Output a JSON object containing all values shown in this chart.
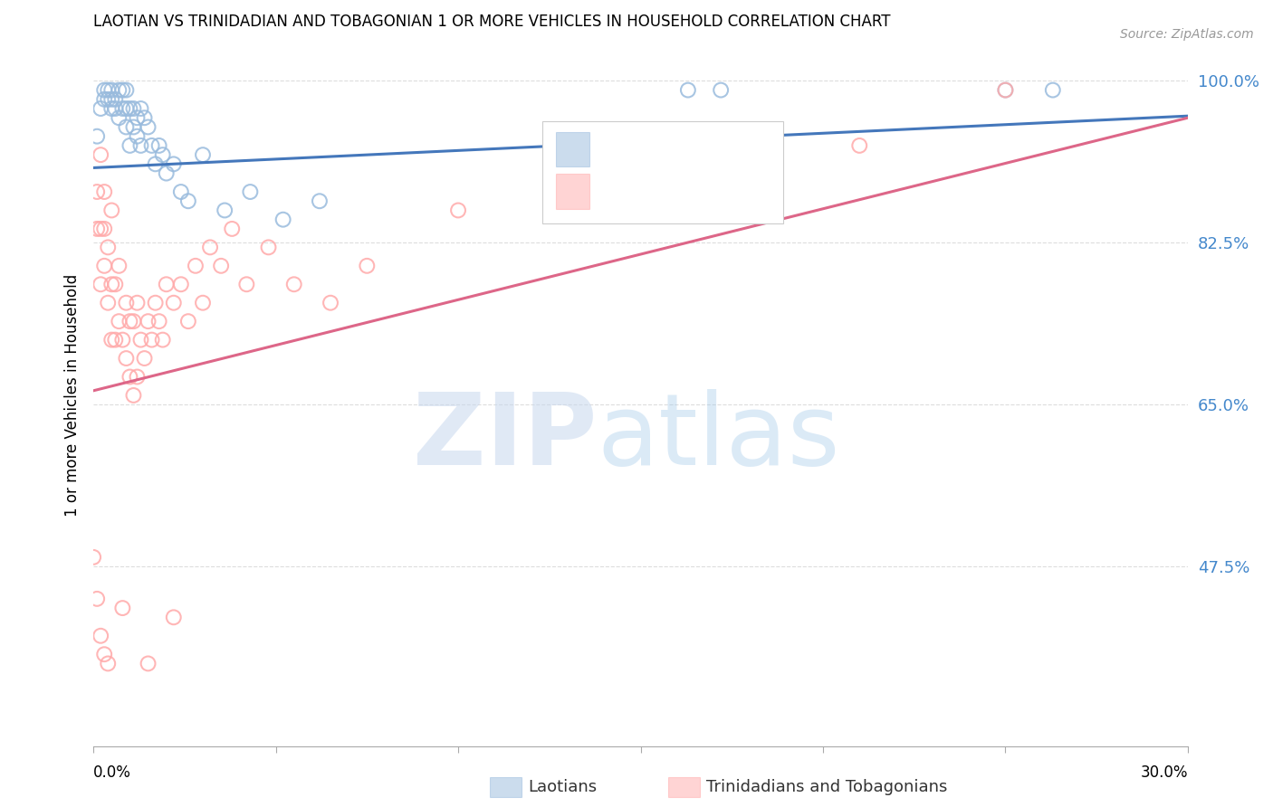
{
  "title": "LAOTIAN VS TRINIDADIAN AND TOBAGONIAN 1 OR MORE VEHICLES IN HOUSEHOLD CORRELATION CHART",
  "source": "Source: ZipAtlas.com",
  "ylabel": "1 or more Vehicles in Household",
  "ytick_labels": [
    "100.0%",
    "82.5%",
    "65.0%",
    "47.5%"
  ],
  "ytick_values": [
    1.0,
    0.825,
    0.65,
    0.475
  ],
  "ymin": 0.28,
  "ymax": 1.04,
  "xmin": 0.0,
  "xmax": 0.3,
  "legend_blue_label": "Laotians",
  "legend_pink_label": "Trinidadians and Tobagonians",
  "blue_scatter_color": "#99BBDD",
  "pink_scatter_color": "#FFAAAA",
  "blue_line_color": "#4477BB",
  "pink_line_color": "#DD6688",
  "blue_line_y0": 0.906,
  "blue_line_y1": 0.962,
  "pink_line_y0": 0.665,
  "pink_line_y1": 0.96,
  "blue_x": [
    0.001,
    0.002,
    0.003,
    0.003,
    0.004,
    0.004,
    0.005,
    0.005,
    0.005,
    0.006,
    0.006,
    0.007,
    0.007,
    0.008,
    0.008,
    0.009,
    0.009,
    0.009,
    0.01,
    0.01,
    0.011,
    0.011,
    0.012,
    0.012,
    0.013,
    0.013,
    0.014,
    0.015,
    0.016,
    0.017,
    0.018,
    0.019,
    0.02,
    0.022,
    0.024,
    0.026,
    0.03,
    0.036,
    0.043,
    0.052,
    0.062,
    0.163,
    0.172,
    0.25,
    0.263
  ],
  "blue_y": [
    0.94,
    0.97,
    0.98,
    0.99,
    0.98,
    0.99,
    0.97,
    0.99,
    0.98,
    0.97,
    0.98,
    0.96,
    0.99,
    0.97,
    0.99,
    0.95,
    0.97,
    0.99,
    0.93,
    0.97,
    0.95,
    0.97,
    0.94,
    0.96,
    0.93,
    0.97,
    0.96,
    0.95,
    0.93,
    0.91,
    0.93,
    0.92,
    0.9,
    0.91,
    0.88,
    0.87,
    0.92,
    0.86,
    0.88,
    0.85,
    0.87,
    0.99,
    0.99,
    0.99,
    0.99
  ],
  "pink_x": [
    0.0,
    0.001,
    0.001,
    0.002,
    0.002,
    0.002,
    0.003,
    0.003,
    0.003,
    0.004,
    0.004,
    0.005,
    0.005,
    0.005,
    0.006,
    0.006,
    0.007,
    0.007,
    0.008,
    0.009,
    0.009,
    0.01,
    0.01,
    0.011,
    0.011,
    0.012,
    0.012,
    0.013,
    0.014,
    0.015,
    0.016,
    0.017,
    0.018,
    0.019,
    0.02,
    0.022,
    0.024,
    0.026,
    0.028,
    0.03,
    0.032,
    0.035,
    0.038,
    0.042,
    0.048,
    0.055,
    0.065,
    0.075,
    0.1,
    0.13,
    0.175,
    0.21,
    0.25,
    0.001,
    0.002,
    0.003,
    0.004,
    0.008,
    0.015,
    0.022
  ],
  "pink_y": [
    0.485,
    0.84,
    0.88,
    0.78,
    0.84,
    0.92,
    0.8,
    0.84,
    0.88,
    0.76,
    0.82,
    0.72,
    0.78,
    0.86,
    0.72,
    0.78,
    0.74,
    0.8,
    0.72,
    0.7,
    0.76,
    0.68,
    0.74,
    0.66,
    0.74,
    0.68,
    0.76,
    0.72,
    0.7,
    0.74,
    0.72,
    0.76,
    0.74,
    0.72,
    0.78,
    0.76,
    0.78,
    0.74,
    0.8,
    0.76,
    0.82,
    0.8,
    0.84,
    0.78,
    0.82,
    0.78,
    0.76,
    0.8,
    0.86,
    0.88,
    0.91,
    0.93,
    0.99,
    0.44,
    0.4,
    0.38,
    0.37,
    0.43,
    0.37,
    0.42
  ]
}
